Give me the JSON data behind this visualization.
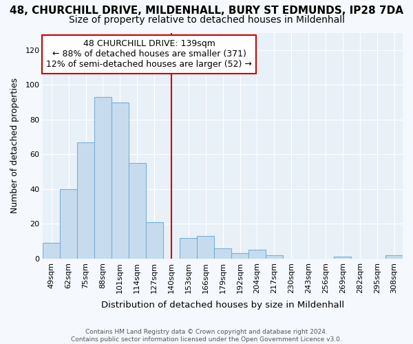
{
  "title_line1": "48, CHURCHILL DRIVE, MILDENHALL, BURY ST EDMUNDS, IP28 7DA",
  "title_line2": "Size of property relative to detached houses in Mildenhall",
  "xlabel": "Distribution of detached houses by size in Mildenhall",
  "ylabel": "Number of detached properties",
  "categories": [
    "49sqm",
    "62sqm",
    "75sqm",
    "88sqm",
    "101sqm",
    "114sqm",
    "127sqm",
    "140sqm",
    "153sqm",
    "166sqm",
    "179sqm",
    "192sqm",
    "204sqm",
    "217sqm",
    "230sqm",
    "243sqm",
    "256sqm",
    "269sqm",
    "282sqm",
    "295sqm",
    "308sqm"
  ],
  "values": [
    9,
    40,
    67,
    93,
    90,
    55,
    21,
    0,
    12,
    13,
    6,
    3,
    5,
    2,
    0,
    0,
    0,
    1,
    0,
    0,
    2
  ],
  "bar_color": "#c6dcee",
  "bar_edge_color": "#7aafd4",
  "reference_line_x": 7,
  "reference_line_color": "#cc0000",
  "annotation_text": "48 CHURCHILL DRIVE: 139sqm\n← 88% of detached houses are smaller (371)\n12% of semi-detached houses are larger (52) →",
  "annotation_box_color": "#ffffff",
  "annotation_box_edge": "#cc0000",
  "ylim": [
    0,
    130
  ],
  "yticks": [
    0,
    20,
    40,
    60,
    80,
    100,
    120
  ],
  "plot_bg_color": "#e8f0f8",
  "fig_bg_color": "#f5f8fc",
  "footer_text": "Contains HM Land Registry data © Crown copyright and database right 2024.\nContains public sector information licensed under the Open Government Licence v3.0.",
  "title_fontsize": 11,
  "subtitle_fontsize": 10,
  "annotation_fontsize": 9
}
